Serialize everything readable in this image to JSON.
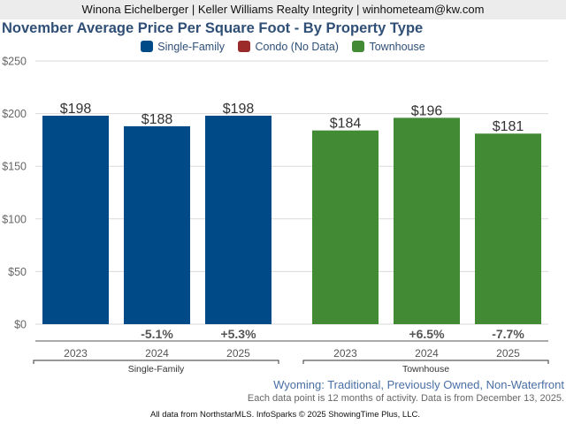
{
  "header": {
    "agent_line": "Winona Eichelberger | Keller Williams Realty Integrity | winhometeam@kw.com"
  },
  "chart_data": {
    "type": "bar",
    "title": "November Average Price Per Square Foot - By Property Type",
    "xlabel": "",
    "ylabel": "",
    "ylim": [
      0,
      250
    ],
    "yticks": [
      0,
      50,
      100,
      150,
      200,
      250
    ],
    "ytick_labels": [
      "$0",
      "$50",
      "$100",
      "$150",
      "$200",
      "$250"
    ],
    "grid": true,
    "legend_position": "top-center",
    "legend": [
      {
        "name": "Single-Family",
        "color": "#004b87"
      },
      {
        "name": "Condo (No Data)",
        "color": "#9b2b2b"
      },
      {
        "name": "Townhouse",
        "color": "#438a35"
      }
    ],
    "groups": [
      {
        "name": "Single-Family",
        "color": "#004b87",
        "categories": [
          "2023",
          "2024",
          "2025"
        ],
        "values": [
          198,
          188,
          198
        ],
        "value_labels": [
          "$198",
          "$188",
          "$198"
        ],
        "changes": [
          "",
          "-5.1%",
          "+5.3%"
        ]
      },
      {
        "name": "Townhouse",
        "color": "#438a35",
        "categories": [
          "2023",
          "2024",
          "2025"
        ],
        "values": [
          184,
          196,
          181
        ],
        "value_labels": [
          "$184",
          "$196",
          "$181"
        ],
        "changes": [
          "",
          "+6.5%",
          "-7.7%"
        ]
      }
    ]
  },
  "footer": {
    "region": "Wyoming: Traditional, Previously Owned, Non-Waterfront",
    "note": "Each data point is 12 months of activity. Data is from December 13, 2025.",
    "source": "All data from NorthstarMLS. InfoSparks © 2025 ShowingTime Plus, LLC."
  }
}
